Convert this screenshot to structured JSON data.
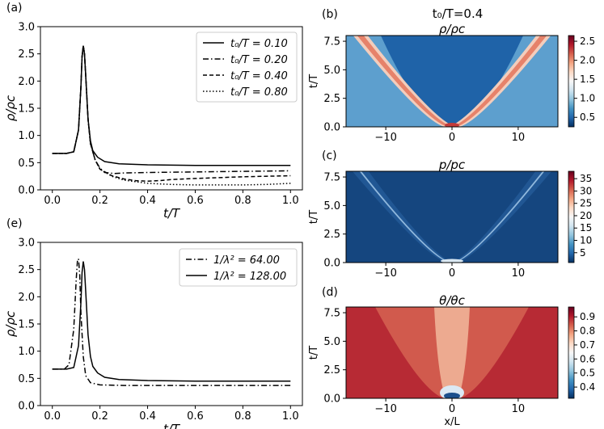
{
  "figure": {
    "suptitle": "t₀/T=0.4"
  },
  "chart_data": [
    {
      "id": "a",
      "type": "line",
      "panel_label": "(a)",
      "xlabel": "t/T",
      "ylabel": "ρ/ρc",
      "xlim": [
        -0.05,
        1.05
      ],
      "ylim": [
        0,
        3.0
      ],
      "xticks": [
        "0.0",
        "0.2",
        "0.4",
        "0.6",
        "0.8",
        "1.0"
      ],
      "yticks": [
        "0.0",
        "0.5",
        "1.0",
        "1.5",
        "2.0",
        "2.5",
        "3.0"
      ],
      "legend_position": "top-right",
      "series": [
        {
          "name": "t₀/T = 0.10",
          "dash": "solid",
          "x": [
            0.0,
            0.06,
            0.09,
            0.11,
            0.12,
            0.125,
            0.13,
            0.135,
            0.14,
            0.15,
            0.16,
            0.17,
            0.19,
            0.22,
            0.28,
            0.4,
            0.6,
            0.8,
            1.0
          ],
          "y": [
            0.67,
            0.67,
            0.7,
            1.1,
            1.9,
            2.45,
            2.65,
            2.5,
            2.1,
            1.3,
            0.9,
            0.72,
            0.6,
            0.52,
            0.48,
            0.46,
            0.45,
            0.45,
            0.45
          ]
        },
        {
          "name": "t₀/T = 0.20",
          "dash": "dashdot",
          "x": [
            0.0,
            0.06,
            0.09,
            0.11,
            0.12,
            0.125,
            0.13,
            0.135,
            0.14,
            0.15,
            0.16,
            0.18,
            0.2,
            0.22,
            0.26,
            0.3,
            0.4,
            0.6,
            0.8,
            1.0
          ],
          "y": [
            0.67,
            0.67,
            0.7,
            1.1,
            1.9,
            2.45,
            2.65,
            2.5,
            2.1,
            1.3,
            0.85,
            0.55,
            0.4,
            0.32,
            0.3,
            0.31,
            0.32,
            0.33,
            0.34,
            0.35
          ]
        },
        {
          "name": "t₀/T = 0.40",
          "dash": "dashed",
          "x": [
            0.0,
            0.06,
            0.09,
            0.11,
            0.12,
            0.125,
            0.13,
            0.135,
            0.14,
            0.15,
            0.16,
            0.18,
            0.2,
            0.25,
            0.3,
            0.35,
            0.4,
            0.45,
            0.5,
            0.6,
            0.8,
            1.0
          ],
          "y": [
            0.67,
            0.67,
            0.7,
            1.1,
            1.9,
            2.45,
            2.65,
            2.5,
            2.1,
            1.3,
            0.85,
            0.55,
            0.38,
            0.26,
            0.2,
            0.17,
            0.16,
            0.17,
            0.19,
            0.21,
            0.24,
            0.26
          ]
        },
        {
          "name": "t₀/T = 0.80",
          "dash": "dotted",
          "x": [
            0.0,
            0.06,
            0.09,
            0.11,
            0.12,
            0.125,
            0.13,
            0.135,
            0.14,
            0.15,
            0.16,
            0.18,
            0.2,
            0.25,
            0.3,
            0.4,
            0.5,
            0.6,
            0.7,
            0.8,
            0.9,
            1.0
          ],
          "y": [
            0.67,
            0.67,
            0.7,
            1.1,
            1.9,
            2.45,
            2.65,
            2.5,
            2.1,
            1.3,
            0.85,
            0.55,
            0.38,
            0.25,
            0.18,
            0.12,
            0.1,
            0.09,
            0.09,
            0.09,
            0.1,
            0.12
          ]
        }
      ]
    },
    {
      "id": "e",
      "type": "line",
      "panel_label": "(e)",
      "xlabel": "t/T",
      "ylabel": "ρ/ρc",
      "xlim": [
        -0.05,
        1.05
      ],
      "ylim": [
        0,
        3.0
      ],
      "xticks": [
        "0.0",
        "0.2",
        "0.4",
        "0.6",
        "0.8",
        "1.0"
      ],
      "yticks": [
        "0.0",
        "0.5",
        "1.0",
        "1.5",
        "2.0",
        "2.5",
        "3.0"
      ],
      "legend_position": "top-right",
      "series": [
        {
          "name": "1/λ² = 64.00",
          "dash": "dashdot",
          "x": [
            0.0,
            0.05,
            0.07,
            0.09,
            0.1,
            0.105,
            0.11,
            0.115,
            0.12,
            0.13,
            0.14,
            0.16,
            0.2,
            0.3,
            0.5,
            0.8,
            1.0
          ],
          "y": [
            0.67,
            0.67,
            0.75,
            1.4,
            2.3,
            2.65,
            2.7,
            2.4,
            1.7,
            0.9,
            0.55,
            0.42,
            0.38,
            0.37,
            0.37,
            0.37,
            0.37
          ]
        },
        {
          "name": "1/λ² = 128.00",
          "dash": "solid",
          "x": [
            0.0,
            0.06,
            0.09,
            0.11,
            0.12,
            0.125,
            0.13,
            0.135,
            0.14,
            0.15,
            0.16,
            0.17,
            0.19,
            0.22,
            0.28,
            0.4,
            0.6,
            0.8,
            1.0
          ],
          "y": [
            0.67,
            0.67,
            0.7,
            1.1,
            1.9,
            2.45,
            2.65,
            2.5,
            2.1,
            1.3,
            0.9,
            0.72,
            0.6,
            0.52,
            0.48,
            0.46,
            0.45,
            0.45,
            0.45
          ]
        }
      ]
    },
    {
      "id": "b",
      "type": "heatmap",
      "panel_label": "(b)",
      "title": "ρ/ρc",
      "xlabel": "",
      "ylabel": "t/T",
      "xlim": [
        -16,
        16
      ],
      "ylim": [
        0,
        8
      ],
      "xticks": [
        "−10",
        "0",
        "10"
      ],
      "yticks": [
        "0.0",
        "2.5",
        "5.0",
        "7.5"
      ],
      "colormap": "RdBu_r",
      "colorbar_range": [
        0.25,
        2.65
      ],
      "colorbar_ticks": [
        "0.5",
        "1.0",
        "1.5",
        "2.0",
        "2.5"
      ],
      "colorbar_values": [
        0.5,
        1.0,
        1.5,
        2.0,
        2.5
      ]
    },
    {
      "id": "c",
      "type": "heatmap",
      "panel_label": "(c)",
      "title": "p/pc",
      "xlabel": "",
      "ylabel": "t/T",
      "xlim": [
        -16,
        16
      ],
      "ylim": [
        0,
        8
      ],
      "xticks": [
        "−10",
        "0",
        "10"
      ],
      "yticks": [
        "0.0",
        "2.5",
        "5.0",
        "7.5"
      ],
      "colormap": "RdBu_r",
      "colorbar_range": [
        1,
        38
      ],
      "colorbar_ticks": [
        "5",
        "10",
        "15",
        "20",
        "25",
        "30",
        "35"
      ],
      "colorbar_values": [
        5,
        10,
        15,
        20,
        25,
        30,
        35
      ]
    },
    {
      "id": "d",
      "type": "heatmap",
      "panel_label": "(d)",
      "title": "θ/θc",
      "xlabel": "x/L",
      "ylabel": "t/T",
      "xlim": [
        -16,
        16
      ],
      "ylim": [
        0,
        8
      ],
      "xticks": [
        "−10",
        "0",
        "10"
      ],
      "yticks": [
        "0.0",
        "2.5",
        "5.0",
        "7.5"
      ],
      "colormap": "RdBu_r",
      "colorbar_range": [
        0.32,
        0.97
      ],
      "colorbar_ticks": [
        "0.4",
        "0.5",
        "0.6",
        "0.7",
        "0.8",
        "0.9"
      ],
      "colorbar_values": [
        0.4,
        0.5,
        0.6,
        0.7,
        0.8,
        0.9
      ]
    }
  ]
}
